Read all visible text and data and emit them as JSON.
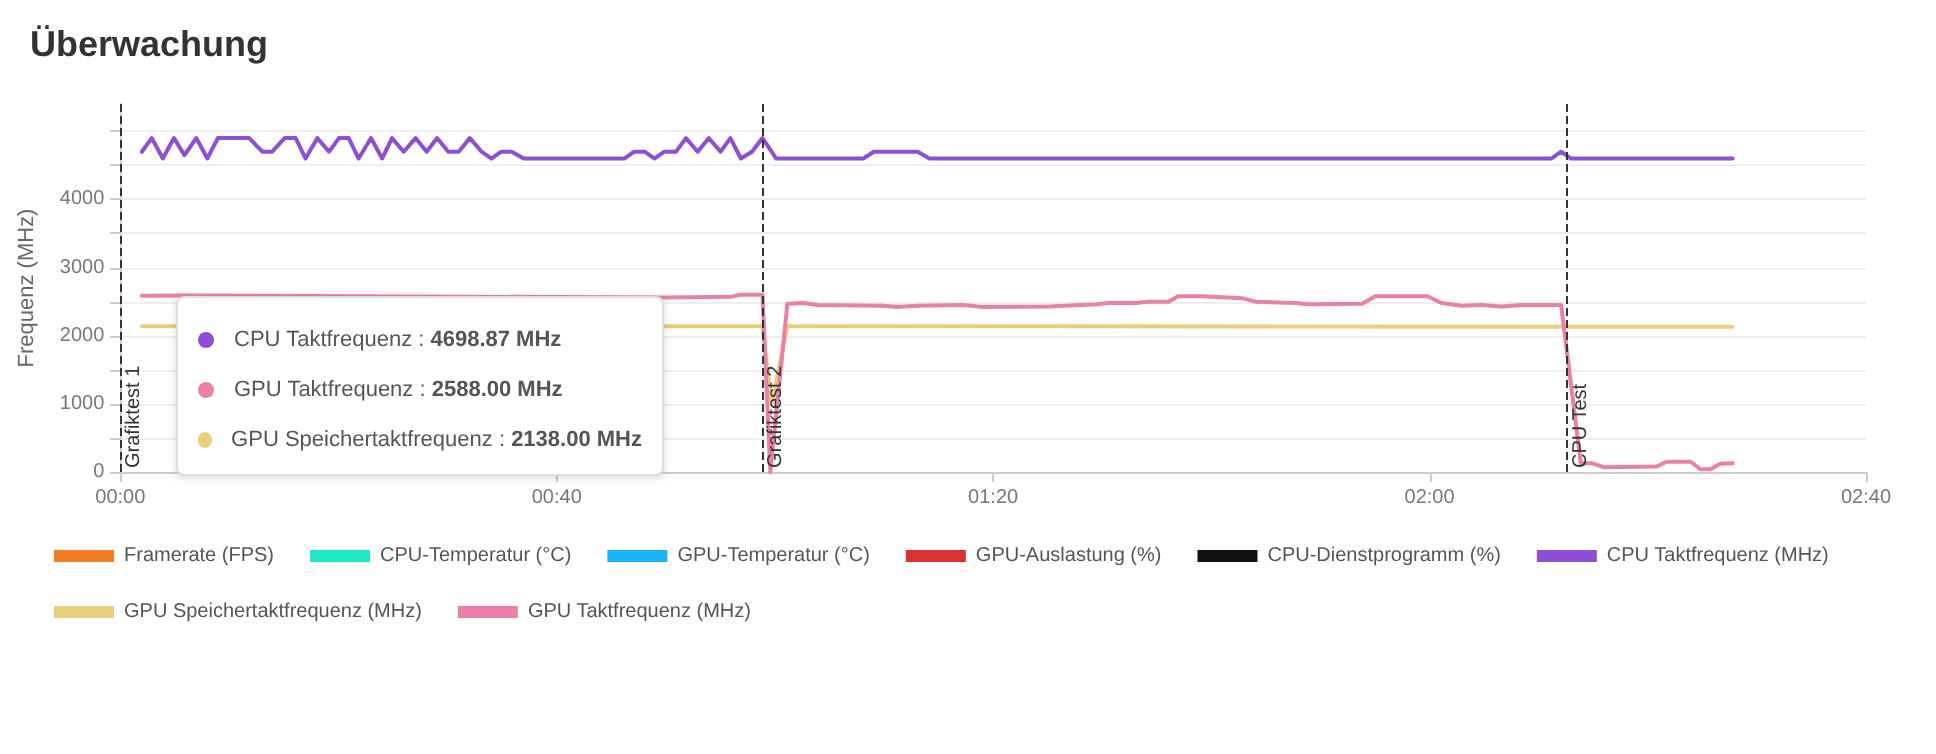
{
  "chart_data": {
    "type": "line",
    "title": "Überwachung",
    "ylabel": "Frequenz (MHz)",
    "xlim": [
      0,
      2.6667
    ],
    "xticks": [
      {
        "value": 0,
        "label": "00:00"
      },
      {
        "value": 0.6667,
        "label": "00:40"
      },
      {
        "value": 1.3333,
        "label": "01:20"
      },
      {
        "value": 2,
        "label": "02:00"
      },
      {
        "value": 2.6667,
        "label": "02:40"
      }
    ],
    "ylim": [
      0,
      5400
    ],
    "yticks": [
      0,
      {
        "value": 500,
        "label": null
      },
      1000,
      {
        "value": 1500,
        "label": null
      },
      2000,
      {
        "value": 2500,
        "label": null
      },
      3000,
      {
        "value": 3500,
        "label": null
      },
      4000,
      {
        "value": 4500,
        "label": null
      },
      {
        "value": 5000,
        "label": null
      }
    ],
    "grid": "y",
    "legend": "bottom",
    "marker": "none",
    "line_style": "solid",
    "series": [
      {
        "name": "Framerate (FPS)",
        "color": "#f47c20"
      },
      {
        "name": "CPU-Temperatur (°C)",
        "color": "#1de9c6"
      },
      {
        "name": "GPU-Temperatur (°C)",
        "color": "#1ab3f5"
      },
      {
        "name": "GPU-Auslastung (%)",
        "color": "#d93232"
      },
      {
        "name": "CPU-Dienstprogramm (%)",
        "color": "#111111"
      },
      {
        "name": "CPU Taktfrequenz (MHz)",
        "color": "#8e4fd6",
        "x": [
          0.033,
          0.048,
          0.065,
          0.082,
          0.098,
          0.116,
          0.133,
          0.149,
          0.197,
          0.217,
          0.232,
          0.251,
          0.268,
          0.283,
          0.301,
          0.319,
          0.334,
          0.349,
          0.364,
          0.383,
          0.4,
          0.415,
          0.433,
          0.451,
          0.468,
          0.484,
          0.501,
          0.517,
          0.534,
          0.552,
          0.567,
          0.582,
          0.598,
          0.616,
          0.77,
          0.785,
          0.801,
          0.816,
          0.831,
          0.849,
          0.864,
          0.882,
          0.899,
          0.917,
          0.932,
          0.948,
          0.965,
          0.981,
          1.002,
          1.135,
          1.151,
          1.218,
          1.236,
          2.186,
          2.201,
          2.216,
          2.463
        ],
        "values": [
          4698.87,
          4900,
          4600,
          4900,
          4650,
          4900,
          4600,
          4900,
          4900,
          4700,
          4700,
          4900,
          4900,
          4600,
          4900,
          4700,
          4900,
          4900,
          4600,
          4900,
          4600,
          4900,
          4700,
          4900,
          4700,
          4900,
          4700,
          4700,
          4900,
          4700,
          4600,
          4700,
          4700,
          4600,
          4600,
          4700,
          4700,
          4600,
          4700,
          4700,
          4900,
          4700,
          4900,
          4700,
          4900,
          4600,
          4700,
          4900,
          4600,
          4600,
          4700,
          4700,
          4600,
          4600,
          4700,
          4600,
          4600
        ]
      },
      {
        "name": "GPU Speichertaktfrequenz (MHz)",
        "color": "#e9cf7b",
        "x": [
          0.033,
          0.981,
          0.995,
          1.019,
          2.463
        ],
        "values": [
          2138,
          2140,
          1000,
          2140,
          2130
        ]
      },
      {
        "name": "GPU Taktfrequenz (MHz)",
        "color": "#ec7fa9",
        "x": [
          0.033,
          0.098,
          0.831,
          0.932,
          0.947,
          0.981,
          0.993,
          1.019,
          1.044,
          1.065,
          1.166,
          1.186,
          1.217,
          1.288,
          1.318,
          1.419,
          1.491,
          1.51,
          1.552,
          1.571,
          1.601,
          1.616,
          1.653,
          1.714,
          1.734,
          1.795,
          1.814,
          1.897,
          1.917,
          1.997,
          2.018,
          2.049,
          2.079,
          2.11,
          2.14,
          2.201,
          2.231,
          2.247,
          2.267,
          2.347,
          2.362,
          2.399,
          2.414,
          2.429,
          2.444,
          2.463
        ],
        "values": [
          2588,
          2590,
          2560,
          2570,
          2600,
          2600,
          0,
          2470,
          2480,
          2450,
          2440,
          2420,
          2440,
          2450,
          2420,
          2430,
          2460,
          2480,
          2480,
          2500,
          2500,
          2580,
          2580,
          2550,
          2500,
          2480,
          2460,
          2470,
          2580,
          2580,
          2480,
          2440,
          2450,
          2430,
          2450,
          2450,
          130,
          130,
          70,
          80,
          150,
          150,
          40,
          40,
          120,
          130
        ]
      }
    ],
    "ref_lines": [
      {
        "axis": "x",
        "value": 0,
        "label": "Grafiktest 1",
        "color": "#333333",
        "line_style": "dashed"
      },
      {
        "axis": "x",
        "value": 0.983,
        "label": "Grafiktest 2",
        "color": "#333333",
        "line_style": "dashed"
      },
      {
        "axis": "x",
        "value": 2.213,
        "label": "CPU Test",
        "color": "#333333",
        "line_style": "dashed"
      }
    ],
    "annotations": [
      "CPU Taktfrequenz : 4698.87 MHz",
      "GPU Taktfrequenz : 2588.00 MHz",
      "GPU Speichertaktfrequenz : 2138.00 MHz"
    ]
  }
}
